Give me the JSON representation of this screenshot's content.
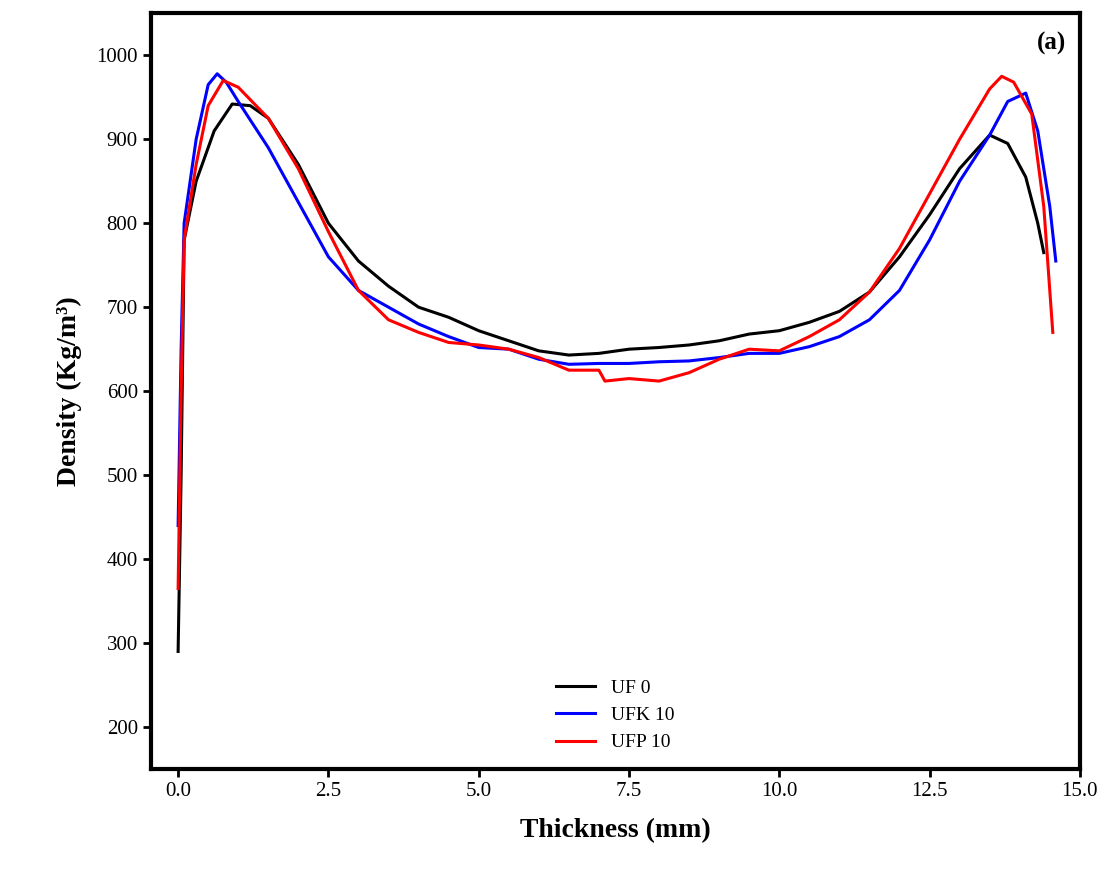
{
  "chart_data": {
    "type": "line",
    "x_label": "Thickness (mm)",
    "y_label": "Density (Kg/m³)",
    "annotation": "(a)",
    "xlim": [
      -0.45,
      15.0
    ],
    "ylim": [
      150,
      1050
    ],
    "xticks": [
      {
        "value": 0.0,
        "label": "0.0"
      },
      {
        "value": 2.5,
        "label": "2.5"
      },
      {
        "value": 5.0,
        "label": "5.0"
      },
      {
        "value": 7.5,
        "label": "7.5"
      },
      {
        "value": 10.0,
        "label": "10.0"
      },
      {
        "value": 12.5,
        "label": "12.5"
      },
      {
        "value": 15.0,
        "label": "15.0"
      }
    ],
    "yticks": [
      200,
      300,
      400,
      500,
      600,
      700,
      800,
      900,
      1000
    ],
    "grid": false,
    "legend": "lower center",
    "series": [
      {
        "name": "UF 0",
        "color": "#000000",
        "x": [
          0,
          0.05,
          0.1,
          0.3,
          0.6,
          0.9,
          1.2,
          1.5,
          2.0,
          2.5,
          3.0,
          3.5,
          4.0,
          4.5,
          5.0,
          5.5,
          6.0,
          6.5,
          7.0,
          7.5,
          8.0,
          8.5,
          9.0,
          9.5,
          10.0,
          10.5,
          11.0,
          11.5,
          12.0,
          12.5,
          13.0,
          13.5,
          13.8,
          14.1,
          14.3,
          14.4
        ],
        "values": [
          290,
          500,
          780,
          850,
          910,
          942,
          940,
          925,
          870,
          800,
          755,
          725,
          700,
          688,
          672,
          660,
          648,
          643,
          645,
          650,
          652,
          655,
          660,
          668,
          672,
          682,
          695,
          718,
          760,
          810,
          865,
          905,
          895,
          855,
          800,
          765
        ]
      },
      {
        "name": "UFK 10",
        "color": "#0000ff",
        "x": [
          0,
          0.05,
          0.1,
          0.3,
          0.5,
          0.65,
          0.8,
          1.0,
          1.5,
          2.0,
          2.5,
          3.0,
          3.5,
          4.0,
          4.5,
          5.0,
          5.5,
          6.0,
          6.5,
          7.0,
          7.5,
          8.0,
          8.5,
          9.0,
          9.5,
          10.0,
          10.5,
          11.0,
          11.5,
          12.0,
          12.5,
          13.0,
          13.5,
          13.8,
          14.1,
          14.3,
          14.5,
          14.6
        ],
        "values": [
          440,
          650,
          800,
          900,
          965,
          978,
          968,
          945,
          890,
          825,
          760,
          720,
          700,
          680,
          665,
          652,
          650,
          638,
          632,
          633,
          633,
          635,
          636,
          640,
          645,
          645,
          653,
          665,
          685,
          720,
          780,
          850,
          905,
          945,
          955,
          910,
          820,
          755
        ]
      },
      {
        "name": "UFP 10",
        "color": "#ff0000",
        "x": [
          0,
          0.05,
          0.1,
          0.3,
          0.5,
          0.75,
          1.0,
          1.5,
          2.0,
          2.5,
          3.0,
          3.5,
          4.0,
          4.5,
          5.0,
          5.5,
          6.0,
          6.5,
          7.0,
          7.1,
          7.5,
          8.0,
          8.5,
          9.0,
          9.5,
          10.0,
          10.5,
          11.0,
          11.5,
          12.0,
          12.5,
          13.0,
          13.5,
          13.7,
          13.9,
          14.2,
          14.4,
          14.55
        ],
        "values": [
          365,
          600,
          780,
          870,
          940,
          970,
          962,
          925,
          865,
          790,
          720,
          685,
          670,
          658,
          655,
          650,
          640,
          625,
          625,
          612,
          615,
          612,
          622,
          638,
          650,
          648,
          665,
          685,
          718,
          770,
          835,
          900,
          960,
          975,
          968,
          930,
          820,
          670
        ]
      }
    ]
  }
}
